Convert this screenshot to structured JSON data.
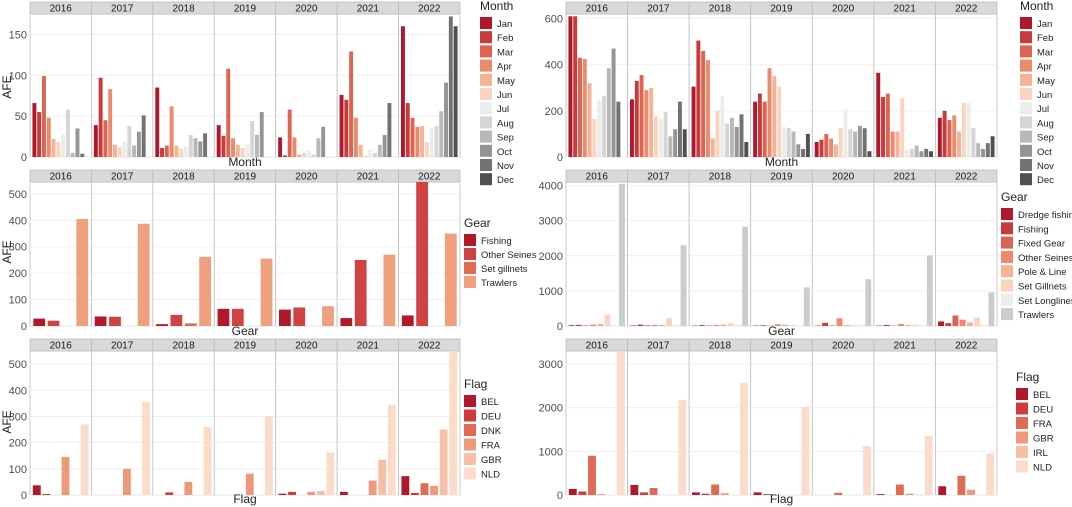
{
  "figure": {
    "y_label": "AFE"
  },
  "chart_data": [
    {
      "id": "month-left",
      "type": "bar",
      "facet_variable": "Year",
      "xlabel": "Month",
      "ylabel": "AFE",
      "ylim": [
        0,
        175
      ],
      "yticks": [
        0,
        50,
        100,
        150
      ],
      "legend_title": "Month",
      "grid": true,
      "categories": [
        "Jan",
        "Feb",
        "Mar",
        "Apr",
        "May",
        "Jun",
        "Jul",
        "Aug",
        "Sep",
        "Oct",
        "Nov",
        "Dec"
      ],
      "colors": [
        "#b2182b",
        "#c93a3a",
        "#dc6450",
        "#ec8a6c",
        "#f6b296",
        "#fad4c0",
        "#ececec",
        "#d5d5d5",
        "#b8b8b8",
        "#959595",
        "#727272",
        "#505050"
      ],
      "panels": [
        {
          "year": "2016",
          "values": [
            66,
            55,
            99,
            48,
            22,
            18,
            28,
            58,
            5,
            35,
            4,
            0
          ]
        },
        {
          "year": "2017",
          "values": [
            39,
            97,
            45,
            83,
            15,
            12,
            19,
            38,
            14,
            31,
            51,
            0
          ]
        },
        {
          "year": "2018",
          "values": [
            85,
            11,
            14,
            62,
            14,
            10,
            13,
            27,
            23,
            19,
            29,
            0
          ]
        },
        {
          "year": "2019",
          "values": [
            39,
            26,
            108,
            23,
            15,
            11,
            15,
            44,
            27,
            55,
            0,
            0
          ]
        },
        {
          "year": "2020",
          "values": [
            24,
            2,
            58,
            24,
            3,
            5,
            8,
            3,
            23,
            37,
            0,
            0
          ]
        },
        {
          "year": "2021",
          "values": [
            76,
            70,
            129,
            48,
            15,
            2,
            9,
            5,
            15,
            27,
            66,
            0
          ]
        },
        {
          "year": "2022",
          "values": [
            160,
            66,
            48,
            37,
            38,
            18,
            36,
            38,
            56,
            91,
            172,
            160
          ]
        }
      ]
    },
    {
      "id": "month-right",
      "type": "bar",
      "facet_variable": "Year",
      "xlabel": "Month",
      "ylabel": "",
      "ylim": [
        0,
        620
      ],
      "yticks": [
        0,
        200,
        400,
        600
      ],
      "legend_title": "Month",
      "grid": true,
      "categories": [
        "Jan",
        "Feb",
        "Mar",
        "Apr",
        "May",
        "Jun",
        "Jul",
        "Aug",
        "Sep",
        "Oct",
        "Nov",
        "Dec"
      ],
      "colors": [
        "#b2182b",
        "#c93a3a",
        "#dc6450",
        "#ec8a6c",
        "#f6b296",
        "#fad4c0",
        "#ececec",
        "#d5d5d5",
        "#b8b8b8",
        "#959595",
        "#727272",
        "#505050"
      ],
      "panels": [
        {
          "year": "2016",
          "values": [
            610,
            610,
            430,
            425,
            320,
            165,
            245,
            265,
            385,
            470,
            240,
            0
          ]
        },
        {
          "year": "2017",
          "values": [
            250,
            330,
            355,
            290,
            300,
            175,
            165,
            195,
            90,
            120,
            240,
            120
          ]
        },
        {
          "year": "2018",
          "values": [
            305,
            505,
            460,
            420,
            80,
            200,
            265,
            145,
            170,
            130,
            185,
            65
          ]
        },
        {
          "year": "2019",
          "values": [
            240,
            275,
            240,
            385,
            350,
            305,
            130,
            125,
            110,
            55,
            35,
            100
          ]
        },
        {
          "year": "2020",
          "values": [
            65,
            75,
            100,
            80,
            55,
            125,
            205,
            120,
            110,
            135,
            125,
            25
          ]
        },
        {
          "year": "2021",
          "values": [
            365,
            260,
            275,
            110,
            110,
            255,
            30,
            35,
            50,
            25,
            35,
            25
          ]
        },
        {
          "year": "2022",
          "values": [
            170,
            200,
            160,
            180,
            110,
            235,
            235,
            125,
            60,
            35,
            60,
            90
          ]
        }
      ]
    },
    {
      "id": "gear-left",
      "type": "bar",
      "facet_variable": "Year",
      "xlabel": "Gear",
      "ylabel": "AFE",
      "ylim": [
        0,
        545
      ],
      "yticks": [
        0,
        100,
        200,
        300,
        400,
        500
      ],
      "legend_title": "Gear",
      "grid": true,
      "categories": [
        "Fishing",
        "Other Seines",
        "Set gillnets",
        "Trawlers"
      ],
      "colors": [
        "#b2182b",
        "#d14343",
        "#e36a55",
        "#f0a07e"
      ],
      "panels": [
        {
          "year": "2016",
          "values": [
            28,
            20,
            0,
            405
          ]
        },
        {
          "year": "2017",
          "values": [
            36,
            35,
            0,
            387
          ]
        },
        {
          "year": "2018",
          "values": [
            7,
            42,
            10,
            262
          ]
        },
        {
          "year": "2019",
          "values": [
            65,
            65,
            0,
            255
          ]
        },
        {
          "year": "2020",
          "values": [
            62,
            70,
            0,
            75
          ]
        },
        {
          "year": "2021",
          "values": [
            30,
            250,
            0,
            270
          ]
        },
        {
          "year": "2022",
          "values": [
            40,
            545,
            0,
            350
          ]
        }
      ]
    },
    {
      "id": "gear-right",
      "type": "bar",
      "facet_variable": "Year",
      "xlabel": "Gear",
      "ylabel": "",
      "ylim": [
        0,
        4100
      ],
      "yticks": [
        0,
        1000,
        2000,
        3000,
        4000
      ],
      "legend_title": "Gear",
      "grid": true,
      "categories": [
        "Dredge fishing",
        "Fishing",
        "Fixed Gear",
        "Other Seines",
        "Pole & Line",
        "Set Gillnets",
        "Set Longlines",
        "Trawlers"
      ],
      "colors": [
        "#b2182b",
        "#c93a3a",
        "#dc6450",
        "#ec8a6c",
        "#f6b296",
        "#fad4c0",
        "#ededed",
        "#cccccc"
      ],
      "panels": [
        {
          "year": "2016",
          "values": [
            20,
            30,
            15,
            40,
            60,
            330,
            25,
            4050
          ]
        },
        {
          "year": "2017",
          "values": [
            15,
            40,
            20,
            30,
            35,
            220,
            30,
            2300
          ]
        },
        {
          "year": "2018",
          "values": [
            10,
            25,
            15,
            30,
            40,
            80,
            40,
            2830
          ]
        },
        {
          "year": "2019",
          "values": [
            10,
            20,
            10,
            50,
            40,
            30,
            20,
            1100
          ]
        },
        {
          "year": "2020",
          "values": [
            10,
            90,
            15,
            220,
            30,
            20,
            30,
            1330
          ]
        },
        {
          "year": "2021",
          "values": [
            10,
            30,
            10,
            60,
            30,
            40,
            25,
            2010
          ]
        },
        {
          "year": "2022",
          "values": [
            130,
            80,
            300,
            180,
            100,
            240,
            30,
            960
          ]
        }
      ]
    },
    {
      "id": "flag-left",
      "type": "bar",
      "facet_variable": "Year",
      "xlabel": "Flag",
      "ylabel": "AFE",
      "ylim": [
        0,
        550
      ],
      "yticks": [
        0,
        100,
        200,
        300,
        400,
        500
      ],
      "legend_title": "Flag",
      "grid": true,
      "categories": [
        "BEL",
        "DEU",
        "DNK",
        "FRA",
        "GBR",
        "NLD"
      ],
      "colors": [
        "#b2182b",
        "#cf3c3c",
        "#e06a55",
        "#ee9a7a",
        "#f7bfa6",
        "#fbdcca"
      ],
      "panels": [
        {
          "year": "2016",
          "values": [
            37,
            4,
            0,
            145,
            0,
            270
          ]
        },
        {
          "year": "2017",
          "values": [
            0,
            0,
            0,
            100,
            0,
            355
          ]
        },
        {
          "year": "2018",
          "values": [
            0,
            10,
            0,
            50,
            0,
            260
          ]
        },
        {
          "year": "2019",
          "values": [
            0,
            0,
            0,
            82,
            0,
            300
          ]
        },
        {
          "year": "2020",
          "values": [
            5,
            12,
            0,
            12,
            15,
            162
          ]
        },
        {
          "year": "2021",
          "values": [
            12,
            0,
            0,
            55,
            135,
            345
          ]
        },
        {
          "year": "2022",
          "values": [
            72,
            8,
            45,
            35,
            250,
            550
          ]
        }
      ]
    },
    {
      "id": "flag-right",
      "type": "bar",
      "facet_variable": "Year",
      "xlabel": "Flag",
      "ylabel": "",
      "ylim": [
        0,
        3300
      ],
      "yticks": [
        0,
        1000,
        2000,
        3000
      ],
      "legend_title": "Flag",
      "grid": true,
      "categories": [
        "BEL",
        "DEU",
        "FRA",
        "GBR",
        "IRL",
        "NLD"
      ],
      "colors": [
        "#b2182b",
        "#cf3c3c",
        "#e06a55",
        "#ee9a7a",
        "#f7bfa6",
        "#fbdcca"
      ],
      "panels": [
        {
          "year": "2016",
          "values": [
            140,
            80,
            900,
            20,
            0,
            3300
          ]
        },
        {
          "year": "2017",
          "values": [
            230,
            60,
            160,
            0,
            0,
            2180
          ]
        },
        {
          "year": "2018",
          "values": [
            60,
            30,
            240,
            40,
            0,
            2570
          ]
        },
        {
          "year": "2019",
          "values": [
            60,
            20,
            0,
            0,
            0,
            2020
          ]
        },
        {
          "year": "2020",
          "values": [
            0,
            0,
            50,
            0,
            0,
            1120
          ]
        },
        {
          "year": "2021",
          "values": [
            20,
            0,
            240,
            30,
            0,
            1360
          ]
        },
        {
          "year": "2022",
          "values": [
            200,
            0,
            440,
            120,
            0,
            950
          ]
        }
      ]
    }
  ]
}
